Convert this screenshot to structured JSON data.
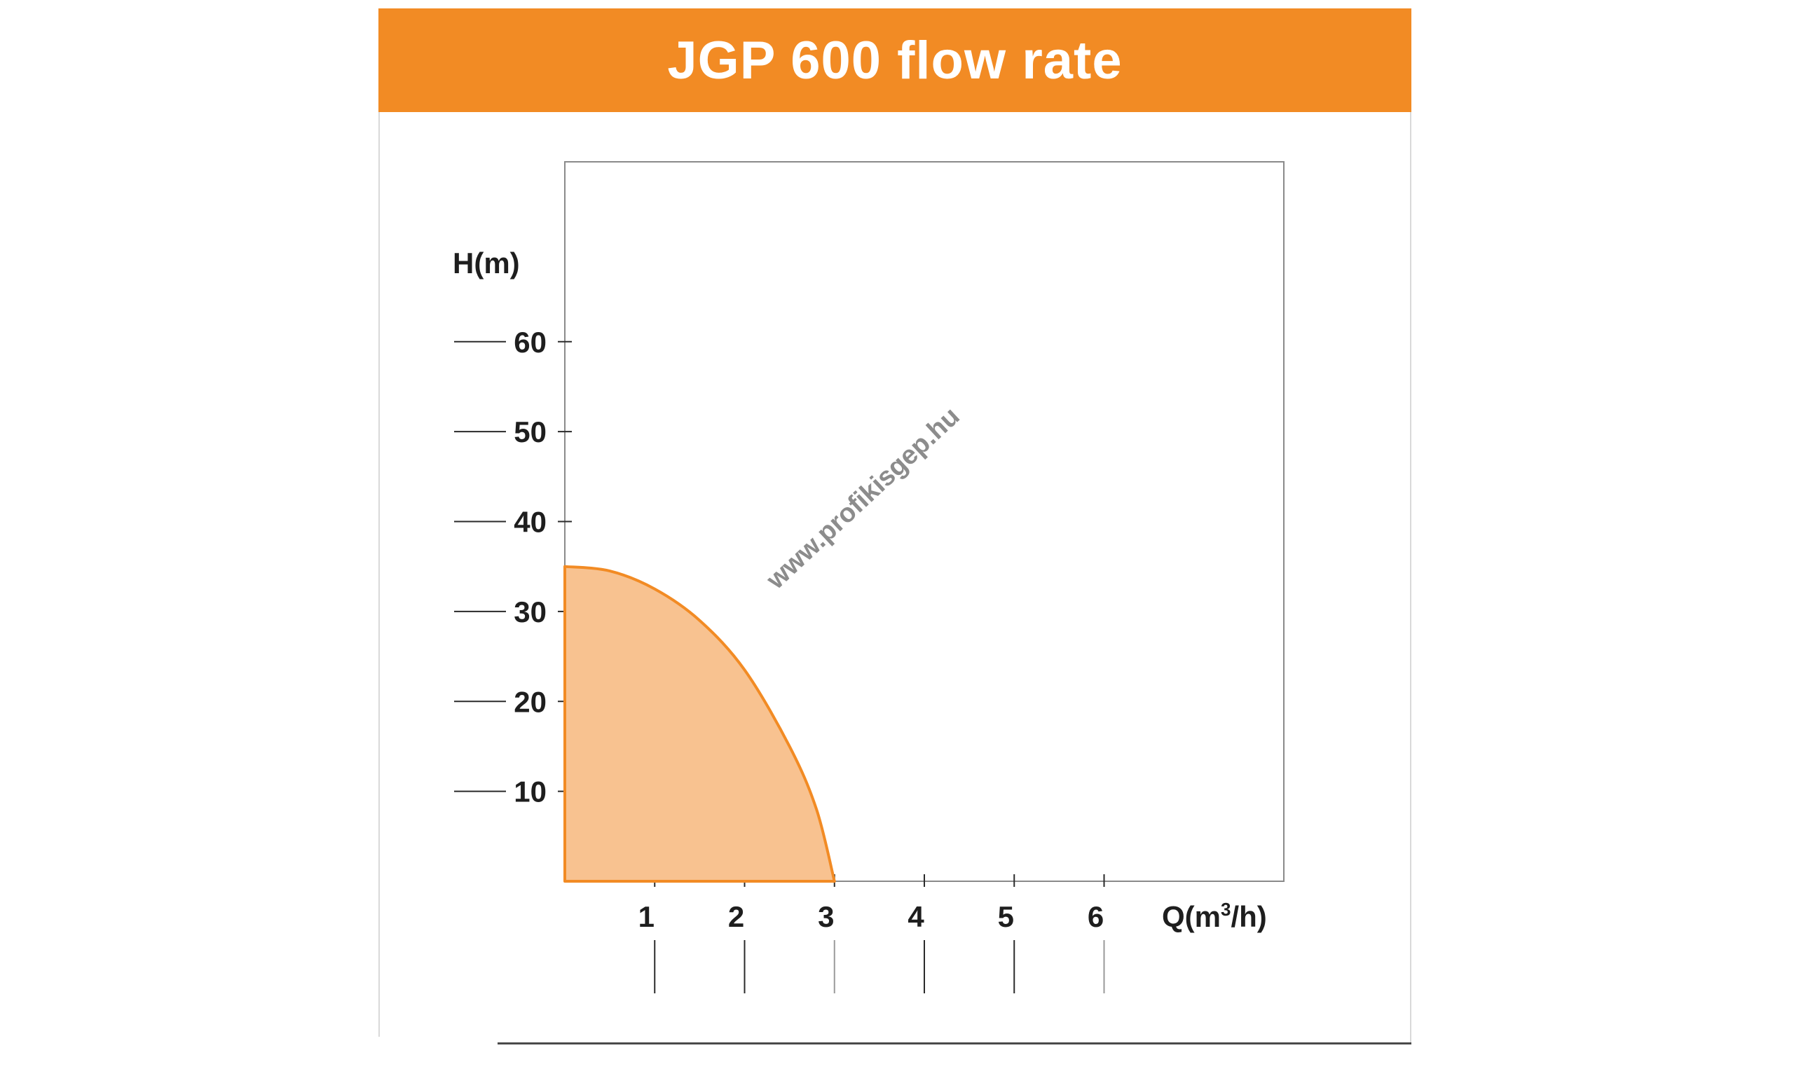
{
  "chart_data": {
    "type": "area",
    "title": "JGP 600 flow rate",
    "ylabel": "H(m)",
    "xlabel_main": "Q(m",
    "xlabel_sup": "3",
    "xlabel_end": "/h)",
    "xlim": [
      0,
      8
    ],
    "ylim": [
      0,
      80
    ],
    "x_ticks": [
      1,
      2,
      3,
      4,
      5,
      6
    ],
    "y_ticks": [
      10,
      20,
      30,
      40,
      50,
      60
    ],
    "series": [
      {
        "x": [
          0,
          0.5,
          1,
          1.5,
          2,
          2.5,
          2.8,
          3
        ],
        "y": [
          35,
          34.5,
          32.5,
          29,
          23.5,
          15,
          8,
          0
        ]
      }
    ],
    "fill_color": "#f8c290",
    "line_color": "#f28b24",
    "grid": false
  },
  "header": {
    "bg_color": "#f28b24"
  },
  "watermark": {
    "text": "www.profikisgep.hu"
  }
}
